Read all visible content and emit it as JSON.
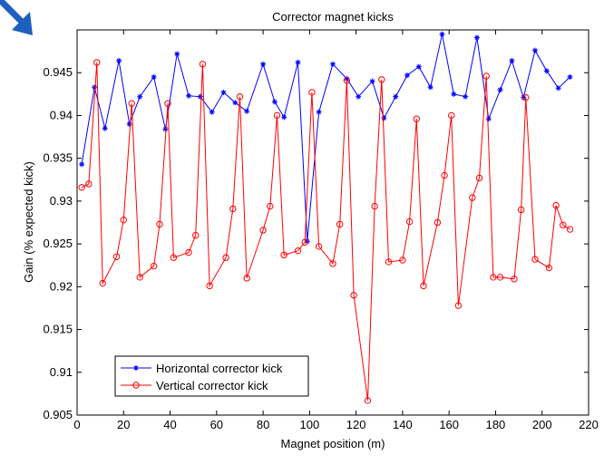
{
  "colors": {
    "horizontal": "#0000ff",
    "vertical": "#ff0000",
    "arrow": "#1f5fbf"
  },
  "icons": {
    "corner_arrow": "arrow-down-right-icon"
  },
  "chart_data": {
    "type": "line",
    "title": "Corrector magnet kicks",
    "xlabel": "Magnet position (m)",
    "ylabel": "Gain (% expected kick)",
    "xlim": [
      0,
      220
    ],
    "ylim": [
      0.905,
      0.95
    ],
    "xticks": [
      "0",
      "20",
      "40",
      "60",
      "80",
      "100",
      "120",
      "140",
      "160",
      "180",
      "200",
      "220"
    ],
    "yticks": [
      "0.905",
      "0.91",
      "0.915",
      "0.92",
      "0.925",
      "0.93",
      "0.935",
      "0.94",
      "0.945"
    ],
    "grid": false,
    "legend_position": "bottom-left",
    "series": [
      {
        "name": "Horizontal corrector kick",
        "marker": "star",
        "x": [
          2,
          7.5,
          12,
          18,
          22.5,
          27,
          33,
          38,
          43,
          48,
          53,
          58,
          63,
          68,
          73,
          80,
          85,
          89,
          95,
          99,
          104,
          110,
          116,
          121,
          127,
          132,
          137,
          142,
          147,
          152,
          157,
          162,
          167,
          172,
          177,
          182,
          187,
          192,
          197,
          202,
          207,
          212
        ],
        "y": [
          0.9343,
          0.9433,
          0.9385,
          0.9464,
          0.939,
          0.9422,
          0.9445,
          0.9384,
          0.9472,
          0.9423,
          0.9422,
          0.9404,
          0.9427,
          0.9415,
          0.9405,
          0.946,
          0.9416,
          0.9398,
          0.9462,
          0.9253,
          0.9404,
          0.946,
          0.9443,
          0.9422,
          0.944,
          0.9397,
          0.9422,
          0.9447,
          0.9457,
          0.9433,
          0.9495,
          0.9425,
          0.9422,
          0.9491,
          0.9396,
          0.943,
          0.9464,
          0.9421,
          0.9476,
          0.9452,
          0.9432,
          0.9445
        ]
      },
      {
        "name": "Vertical corrector kick",
        "marker": "circle",
        "x": [
          2,
          5,
          8.5,
          11,
          17,
          20,
          23.5,
          27,
          33,
          35.5,
          39,
          41.5,
          48,
          51,
          54,
          57,
          64,
          67,
          70,
          73,
          80,
          83,
          86,
          89,
          95,
          98,
          101,
          104,
          110,
          113,
          116,
          119,
          125,
          128,
          131,
          134,
          140,
          143,
          146,
          149,
          155,
          158,
          161,
          164,
          170,
          173,
          176,
          179,
          182,
          188,
          191,
          193,
          197,
          203,
          206,
          209,
          212
        ],
        "y": [
          0.9316,
          0.932,
          0.9462,
          0.9204,
          0.9235,
          0.9278,
          0.9414,
          0.9211,
          0.9224,
          0.9273,
          0.9414,
          0.9234,
          0.924,
          0.926,
          0.946,
          0.9201,
          0.9234,
          0.9291,
          0.9422,
          0.921,
          0.9266,
          0.9294,
          0.94,
          0.9237,
          0.9242,
          0.9252,
          0.9427,
          0.9247,
          0.9227,
          0.9273,
          0.9441,
          0.919,
          0.9067,
          0.9294,
          0.9442,
          0.9229,
          0.9231,
          0.9276,
          0.9396,
          0.9201,
          0.9275,
          0.933,
          0.94,
          0.9178,
          0.9304,
          0.9327,
          0.9446,
          0.9211,
          0.9211,
          0.9209,
          0.929,
          0.9421,
          0.9232,
          0.9222,
          0.9295,
          0.9272,
          0.9267
        ]
      }
    ]
  }
}
